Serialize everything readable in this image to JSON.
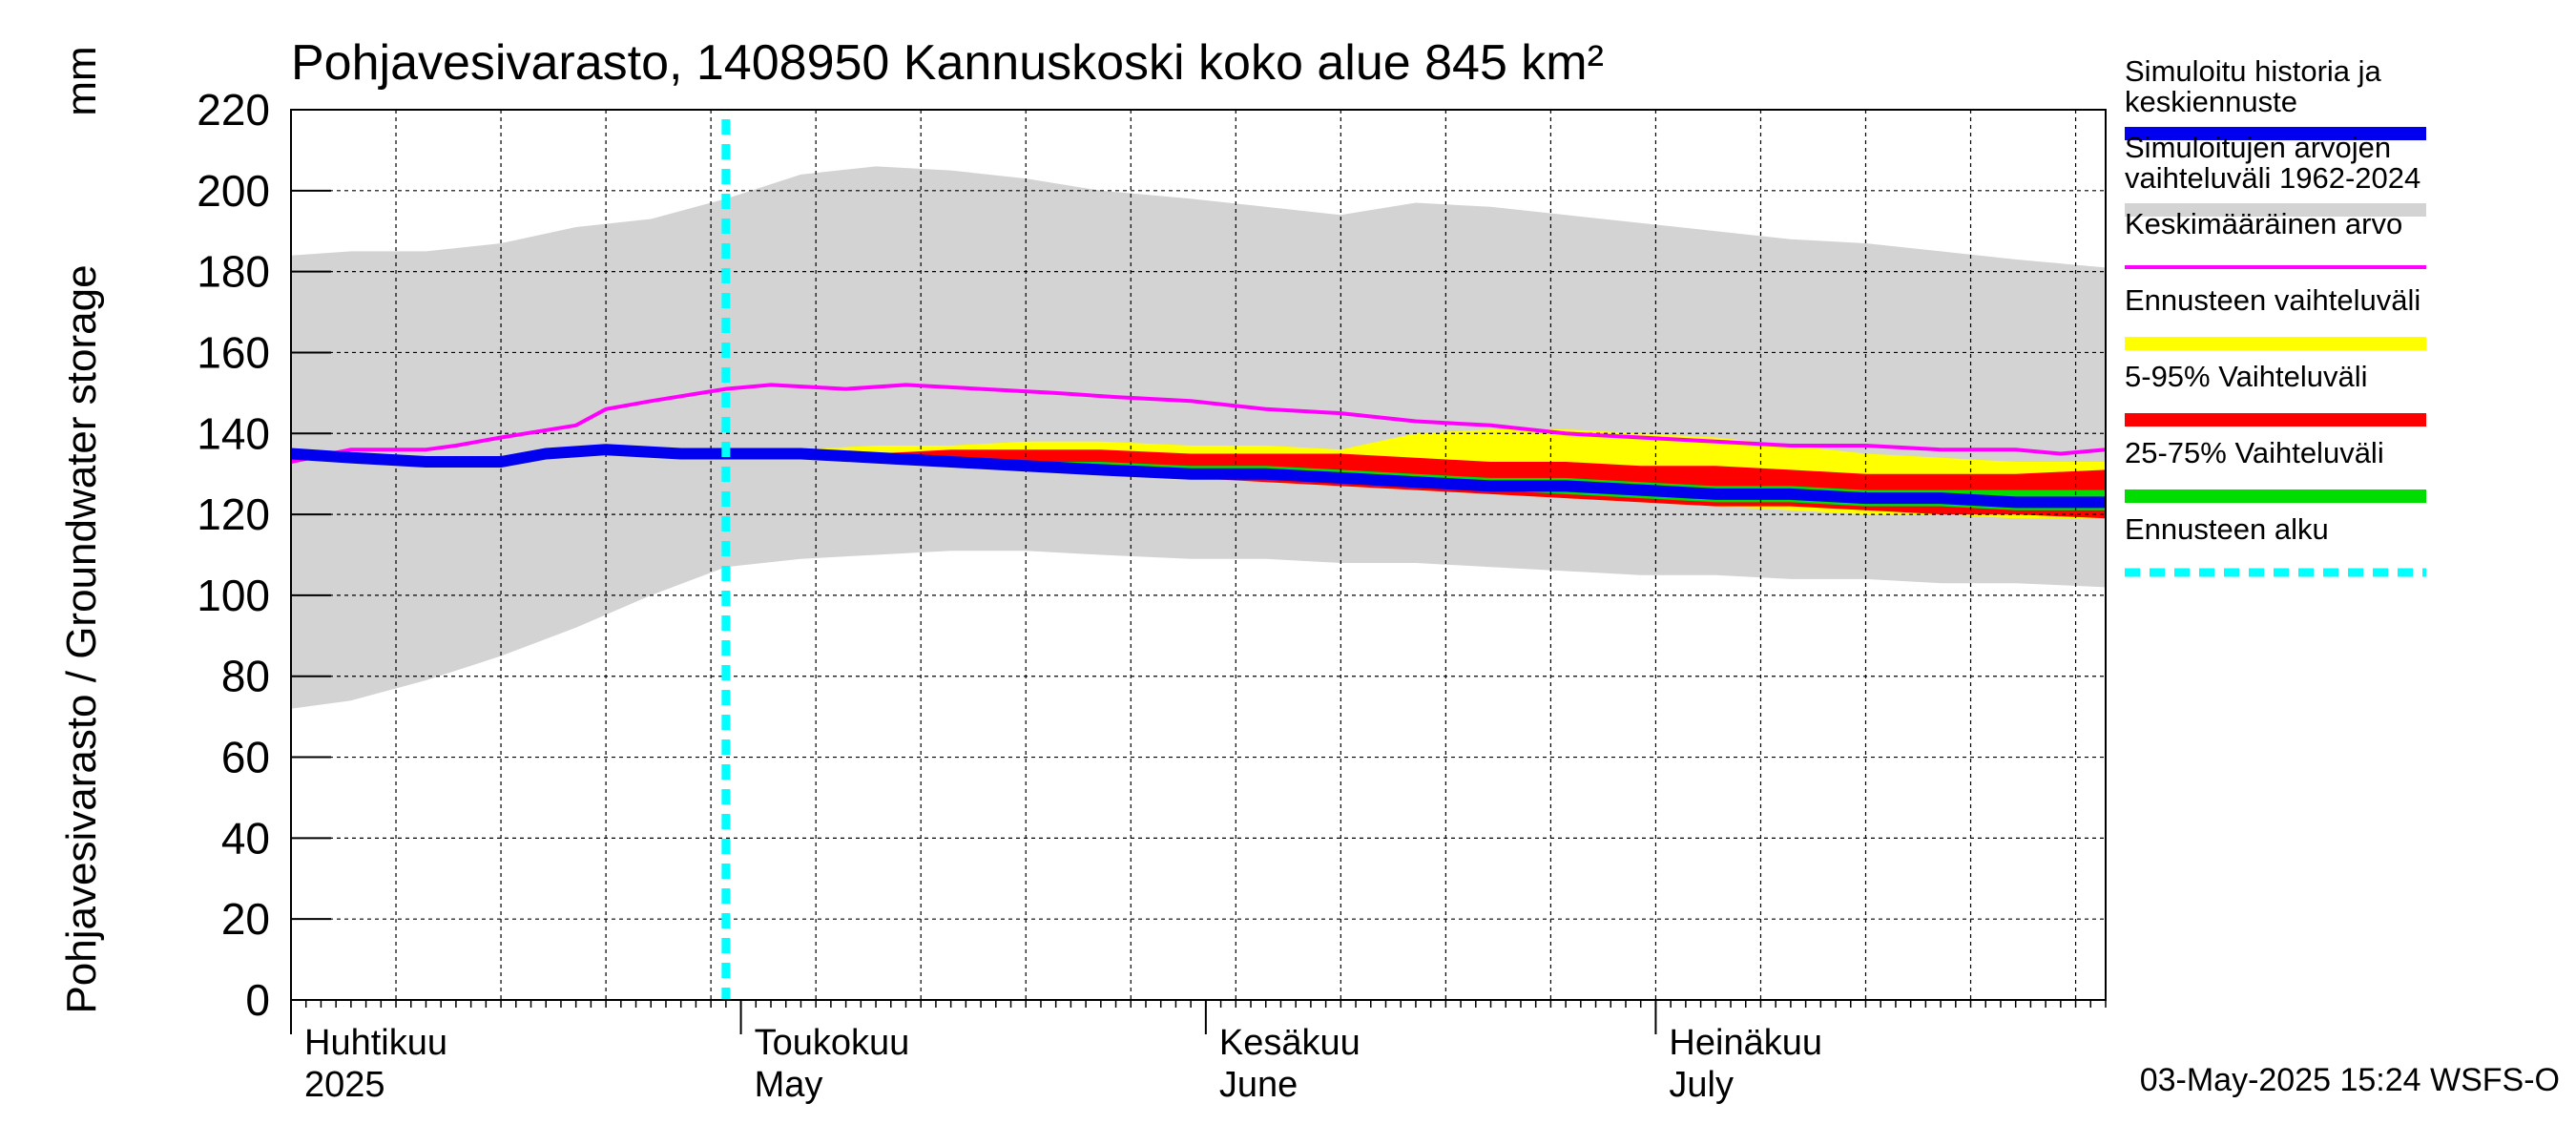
{
  "chart_data": {
    "type": "area",
    "title": "Pohjavesivarasto, 1408950 Kannuskoski koko alue 845 km²",
    "ylabel": "Pohjavesivarasto / Groundwater storage",
    "yunit": "mm",
    "ylim": [
      0,
      220
    ],
    "yticks": [
      0,
      20,
      40,
      60,
      80,
      100,
      120,
      140,
      160,
      180,
      200,
      220
    ],
    "xlim": [
      "2025-04-01",
      "2025-07-31"
    ],
    "grid": true,
    "legend_position": "right",
    "month_labels": [
      {
        "date": "2025-04-01",
        "fi": "Huhtikuu",
        "en": "2025"
      },
      {
        "date": "2025-05-01",
        "fi": "Toukokuu",
        "en": "May"
      },
      {
        "date": "2025-06-01",
        "fi": "Kesäkuu",
        "en": "June"
      },
      {
        "date": "2025-07-01",
        "fi": "Heinäkuu",
        "en": "July"
      }
    ],
    "forecast_start": "2025-04-30",
    "footer": "03-May-2025 15:24 WSFS-O",
    "colors": {
      "history": "#0000ee",
      "range": "#d3d3d3",
      "mean": "#ff00ff",
      "forecast_range": "#ffff00",
      "p5_95": "#ff0000",
      "p25_75": "#00dd00",
      "forecast_start": "#00ffff"
    },
    "legend": [
      {
        "key": "history",
        "line1": "Simuloitu historia ja",
        "line2": "keskiennuste"
      },
      {
        "key": "range",
        "line1": "Simuloitujen arvojen",
        "line2": "vaihteluväli 1962-2024"
      },
      {
        "key": "mean",
        "line1": "Keskimääräinen arvo",
        "line2": ""
      },
      {
        "key": "forecast_range",
        "line1": "Ennusteen vaihteluväli",
        "line2": ""
      },
      {
        "key": "p5_95",
        "line1": "5-95% Vaihteluväli",
        "line2": ""
      },
      {
        "key": "p25_75",
        "line1": "25-75% Vaihteluväli",
        "line2": ""
      },
      {
        "key": "forecast_start",
        "line1": "Ennusteen alku",
        "line2": ""
      }
    ],
    "series": [
      {
        "key": "range",
        "kind": "band",
        "points": [
          [
            "2025-04-01",
            72,
            184
          ],
          [
            "2025-04-05",
            74,
            185
          ],
          [
            "2025-04-10",
            79,
            185
          ],
          [
            "2025-04-15",
            85,
            187
          ],
          [
            "2025-04-20",
            92,
            191
          ],
          [
            "2025-04-25",
            100,
            193
          ],
          [
            "2025-04-30",
            107,
            198
          ],
          [
            "2025-05-05",
            109,
            204
          ],
          [
            "2025-05-10",
            110,
            206
          ],
          [
            "2025-05-15",
            111,
            205
          ],
          [
            "2025-05-20",
            111,
            203
          ],
          [
            "2025-05-25",
            110,
            200
          ],
          [
            "2025-05-31",
            109,
            198
          ],
          [
            "2025-06-05",
            109,
            196
          ],
          [
            "2025-06-10",
            108,
            194
          ],
          [
            "2025-06-15",
            108,
            197
          ],
          [
            "2025-06-20",
            107,
            196
          ],
          [
            "2025-06-25",
            106,
            194
          ],
          [
            "2025-06-30",
            105,
            192
          ],
          [
            "2025-07-05",
            105,
            190
          ],
          [
            "2025-07-10",
            104,
            188
          ],
          [
            "2025-07-15",
            104,
            187
          ],
          [
            "2025-07-20",
            103,
            185
          ],
          [
            "2025-07-25",
            103,
            183
          ],
          [
            "2025-07-31",
            102,
            181
          ]
        ]
      },
      {
        "key": "forecast_range",
        "kind": "band",
        "points": [
          [
            "2025-04-30",
            135,
            135
          ],
          [
            "2025-05-05",
            134,
            136
          ],
          [
            "2025-05-10",
            133,
            137
          ],
          [
            "2025-05-15",
            132,
            137
          ],
          [
            "2025-05-20",
            131,
            138
          ],
          [
            "2025-05-25",
            130,
            138
          ],
          [
            "2025-05-31",
            129,
            137
          ],
          [
            "2025-06-05",
            128,
            137
          ],
          [
            "2025-06-10",
            127,
            136
          ],
          [
            "2025-06-15",
            126,
            140
          ],
          [
            "2025-06-20",
            125,
            141
          ],
          [
            "2025-06-25",
            124,
            141
          ],
          [
            "2025-06-30",
            123,
            140
          ],
          [
            "2025-07-05",
            122,
            139
          ],
          [
            "2025-07-10",
            121,
            137
          ],
          [
            "2025-07-15",
            120,
            135
          ],
          [
            "2025-07-20",
            120,
            134
          ],
          [
            "2025-07-25",
            119,
            133
          ],
          [
            "2025-07-31",
            119,
            133
          ]
        ]
      },
      {
        "key": "p5_95",
        "kind": "band",
        "points": [
          [
            "2025-04-30",
            135,
            135
          ],
          [
            "2025-05-05",
            134,
            135
          ],
          [
            "2025-05-10",
            133,
            135
          ],
          [
            "2025-05-15",
            132,
            136
          ],
          [
            "2025-05-20",
            131,
            136
          ],
          [
            "2025-05-25",
            130,
            136
          ],
          [
            "2025-05-31",
            129,
            135
          ],
          [
            "2025-06-05",
            128,
            135
          ],
          [
            "2025-06-10",
            127,
            135
          ],
          [
            "2025-06-15",
            126,
            134
          ],
          [
            "2025-06-20",
            125,
            133
          ],
          [
            "2025-06-25",
            124,
            133
          ],
          [
            "2025-06-30",
            123,
            132
          ],
          [
            "2025-07-05",
            122,
            132
          ],
          [
            "2025-07-10",
            122,
            131
          ],
          [
            "2025-07-15",
            121,
            130
          ],
          [
            "2025-07-20",
            120,
            130
          ],
          [
            "2025-07-25",
            120,
            130
          ],
          [
            "2025-07-31",
            119,
            131
          ]
        ]
      },
      {
        "key": "p25_75",
        "kind": "band",
        "points": [
          [
            "2025-04-30",
            135,
            135
          ],
          [
            "2025-05-05",
            134,
            135
          ],
          [
            "2025-05-10",
            133,
            134
          ],
          [
            "2025-05-15",
            132,
            134
          ],
          [
            "2025-05-20",
            131,
            133
          ],
          [
            "2025-05-25",
            130,
            133
          ],
          [
            "2025-05-31",
            130,
            132
          ],
          [
            "2025-06-05",
            129,
            132
          ],
          [
            "2025-06-10",
            128,
            131
          ],
          [
            "2025-06-15",
            127,
            130
          ],
          [
            "2025-06-20",
            126,
            129
          ],
          [
            "2025-06-25",
            125,
            129
          ],
          [
            "2025-06-30",
            124,
            128
          ],
          [
            "2025-07-05",
            123,
            127
          ],
          [
            "2025-07-10",
            123,
            127
          ],
          [
            "2025-07-15",
            122,
            126
          ],
          [
            "2025-07-20",
            122,
            126
          ],
          [
            "2025-07-25",
            121,
            126
          ],
          [
            "2025-07-31",
            121,
            126
          ]
        ]
      },
      {
        "key": "mean",
        "kind": "line",
        "points": [
          [
            "2025-04-01",
            133
          ],
          [
            "2025-04-05",
            136
          ],
          [
            "2025-04-10",
            136
          ],
          [
            "2025-04-12",
            137
          ],
          [
            "2025-04-15",
            139
          ],
          [
            "2025-04-20",
            142
          ],
          [
            "2025-04-22",
            146
          ],
          [
            "2025-04-25",
            148
          ],
          [
            "2025-04-30",
            151
          ],
          [
            "2025-05-03",
            152
          ],
          [
            "2025-05-08",
            151
          ],
          [
            "2025-05-12",
            152
          ],
          [
            "2025-05-17",
            151
          ],
          [
            "2025-05-22",
            150
          ],
          [
            "2025-05-26",
            149
          ],
          [
            "2025-05-31",
            148
          ],
          [
            "2025-06-05",
            146
          ],
          [
            "2025-06-10",
            145
          ],
          [
            "2025-06-15",
            143
          ],
          [
            "2025-06-20",
            142
          ],
          [
            "2025-06-25",
            140
          ],
          [
            "2025-06-30",
            139
          ],
          [
            "2025-07-05",
            138
          ],
          [
            "2025-07-10",
            137
          ],
          [
            "2025-07-15",
            137
          ],
          [
            "2025-07-20",
            136
          ],
          [
            "2025-07-25",
            136
          ],
          [
            "2025-07-28",
            135
          ],
          [
            "2025-07-31",
            136
          ]
        ]
      },
      {
        "key": "history",
        "kind": "line",
        "points": [
          [
            "2025-04-01",
            135
          ],
          [
            "2025-04-05",
            134
          ],
          [
            "2025-04-10",
            133
          ],
          [
            "2025-04-15",
            133
          ],
          [
            "2025-04-18",
            135
          ],
          [
            "2025-04-22",
            136
          ],
          [
            "2025-04-27",
            135
          ],
          [
            "2025-04-30",
            135
          ],
          [
            "2025-05-05",
            135
          ],
          [
            "2025-05-10",
            134
          ],
          [
            "2025-05-15",
            133
          ],
          [
            "2025-05-20",
            132
          ],
          [
            "2025-05-25",
            131
          ],
          [
            "2025-05-31",
            130
          ],
          [
            "2025-06-05",
            130
          ],
          [
            "2025-06-10",
            129
          ],
          [
            "2025-06-15",
            128
          ],
          [
            "2025-06-20",
            127
          ],
          [
            "2025-06-25",
            127
          ],
          [
            "2025-06-30",
            126
          ],
          [
            "2025-07-05",
            125
          ],
          [
            "2025-07-10",
            125
          ],
          [
            "2025-07-15",
            124
          ],
          [
            "2025-07-20",
            124
          ],
          [
            "2025-07-25",
            123
          ],
          [
            "2025-07-31",
            123
          ]
        ]
      }
    ]
  }
}
